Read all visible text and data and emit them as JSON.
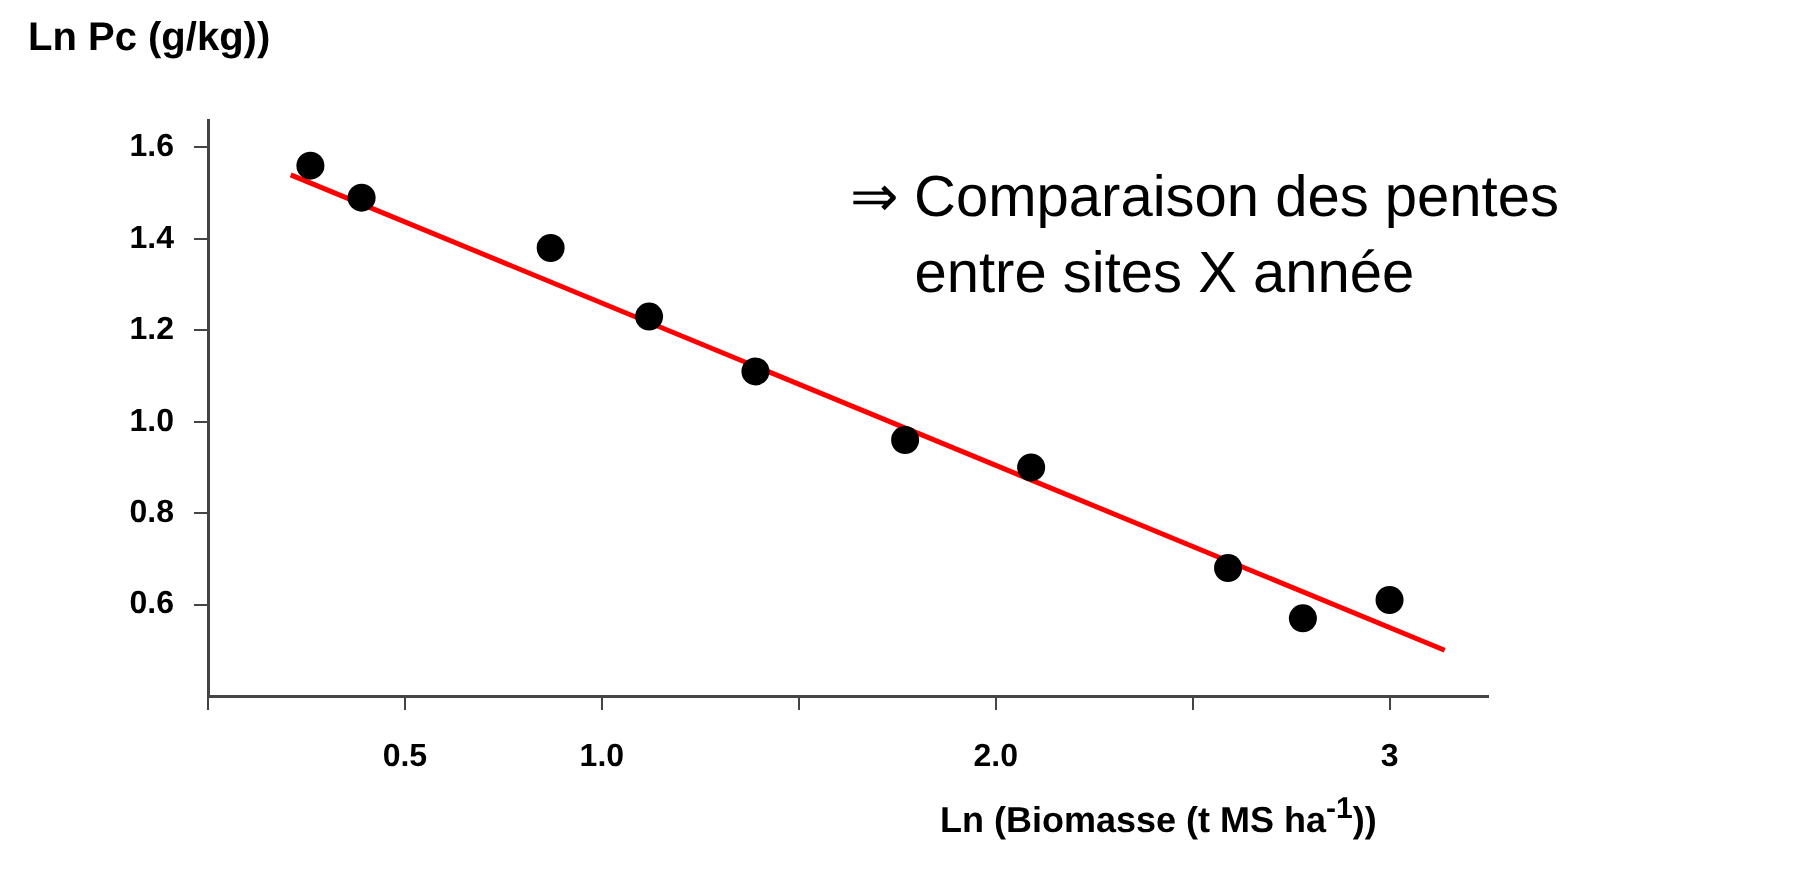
{
  "chart_data": {
    "type": "scatter",
    "ylabel": "Ln Pc (g/kg))",
    "xlabel": "Ln (Biomasse (t MS ha$^{-1}$))",
    "annotations": [
      "⇒ Comparaison des pentes\n    entre sites X année"
    ],
    "xlim": [
      0,
      3.25
    ],
    "xticks": [
      {
        "value": 0,
        "label": null
      },
      0.5,
      {
        "value": 1,
        "label": "1.0"
      },
      {
        "value": 1.5,
        "label": null
      },
      {
        "value": 2,
        "label": "2.0"
      },
      {
        "value": 2.5,
        "label": null
      },
      3
    ],
    "ylim": [
      0.4,
      1.66
    ],
    "yticks": [
      0.6,
      0.8,
      {
        "value": 1,
        "label": "1.0"
      },
      1.2,
      1.4,
      1.6
    ],
    "grid": false,
    "legend": false,
    "series": [
      {
        "marker": "circle",
        "color": "#000000",
        "x": [
          0.26,
          0.39,
          0.87,
          1.12,
          1.39,
          1.77,
          2.09,
          2.59,
          2.78,
          3.0
        ],
        "values": [
          1.56,
          1.49,
          1.38,
          1.23,
          1.11,
          0.96,
          0.9,
          0.68,
          0.57,
          0.61
        ]
      },
      {
        "type": "line",
        "marker": "none",
        "color": "#ff0000",
        "line_style": "solid",
        "x": [
          0.21,
          3.14
        ],
        "values": [
          1.54,
          0.5
        ]
      }
    ]
  }
}
